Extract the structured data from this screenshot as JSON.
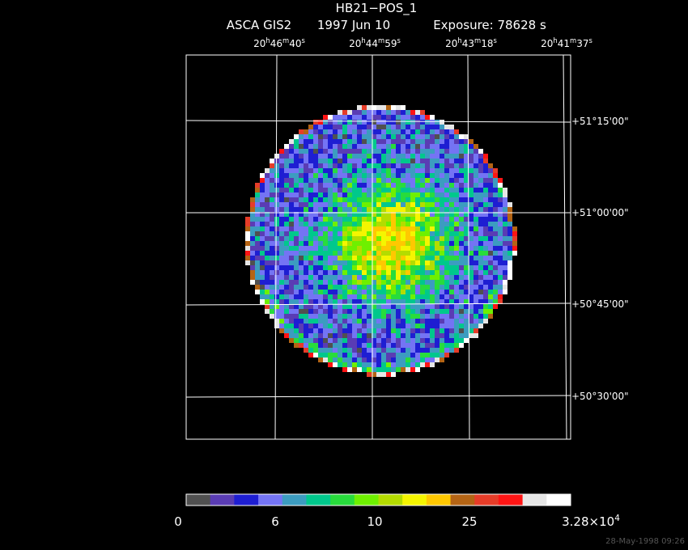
{
  "header": {
    "title": "HB21−POS_1",
    "instrument": "ASCA GIS2",
    "date": "1997 Jun 10",
    "exposure": "Exposure: 78628 s"
  },
  "ra_labels": [
    [
      "20",
      "h",
      "46",
      "m",
      "40",
      "s"
    ],
    [
      "20",
      "h",
      "44",
      "m",
      "59",
      "s"
    ],
    [
      "20",
      "h",
      "43",
      "m",
      "18",
      "s"
    ],
    [
      "20",
      "h",
      "41",
      "m",
      "37",
      "s"
    ]
  ],
  "dec_labels": [
    "+51°15'00\"",
    "+51°00'00\"",
    "+50°45'00\"",
    "+50°30'00\""
  ],
  "colorbar": {
    "colors": [
      "#505050",
      "#5a3cb4",
      "#1e1ed2",
      "#7474f4",
      "#3c9cc0",
      "#00c88c",
      "#28dc3c",
      "#6ef000",
      "#b4dc00",
      "#f5f500",
      "#ffc800",
      "#b46414",
      "#e63c28",
      "#ff1414",
      "#e6e6e6",
      "#ffffff"
    ],
    "labels": [
      [
        "0"
      ],
      [
        "6"
      ],
      [
        "10"
      ],
      [
        "25"
      ],
      [
        "3.28×10",
        "4"
      ]
    ]
  },
  "footer": "28-May-1998 09:26"
}
